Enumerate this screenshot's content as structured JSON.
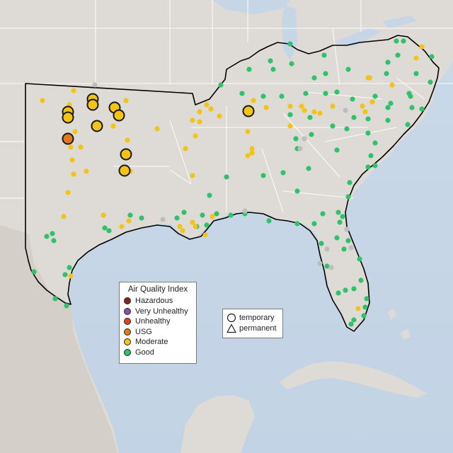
{
  "legend": {
    "title": "Air Quality Index",
    "categories": [
      {
        "label": "Hazardous",
        "color": "#7e2a22"
      },
      {
        "label": "Very Unhealthy",
        "color": "#8f4fb0"
      },
      {
        "label": "Unhealthy",
        "color": "#e0412b"
      },
      {
        "label": "USG",
        "color": "#e07a1a"
      },
      {
        "label": "Moderate",
        "color": "#f3c316"
      },
      {
        "label": "Good",
        "color": "#2fc26b"
      }
    ],
    "no_data_color": "#bdbdbd",
    "shapes": [
      {
        "label": "temporary",
        "icon": "circle-icon"
      },
      {
        "label": "permanent",
        "icon": "triangle-icon"
      }
    ]
  },
  "colors": {
    "land": "#dedbd6",
    "water": "#c7d6e6",
    "region_border": "#000000",
    "state_border": "#ffffff"
  }
}
